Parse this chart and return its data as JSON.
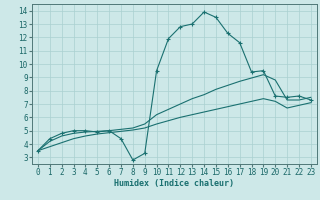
{
  "xlabel": "Humidex (Indice chaleur)",
  "bg_color": "#cde8e8",
  "grid_color": "#aad0d0",
  "line_color": "#1a7070",
  "xlim": [
    -0.5,
    23.5
  ],
  "ylim": [
    2.5,
    14.5
  ],
  "xticks": [
    0,
    1,
    2,
    3,
    4,
    5,
    6,
    7,
    8,
    9,
    10,
    11,
    12,
    13,
    14,
    15,
    16,
    17,
    18,
    19,
    20,
    21,
    22,
    23
  ],
  "yticks": [
    3,
    4,
    5,
    6,
    7,
    8,
    9,
    10,
    11,
    12,
    13,
    14
  ],
  "line1_x": [
    0,
    1,
    2,
    3,
    4,
    5,
    6,
    7,
    8,
    9,
    10,
    11,
    12,
    13,
    14,
    15,
    16,
    17,
    18,
    19,
    20,
    21,
    22,
    23
  ],
  "line1_y": [
    3.5,
    4.4,
    4.8,
    5.0,
    5.0,
    4.9,
    5.0,
    4.4,
    2.8,
    3.3,
    9.5,
    11.9,
    12.8,
    13.0,
    13.9,
    13.5,
    12.3,
    11.6,
    9.4,
    9.5,
    7.6,
    7.5,
    7.6,
    7.3
  ],
  "line2_x": [
    0,
    1,
    2,
    3,
    4,
    5,
    6,
    7,
    8,
    9,
    10,
    11,
    12,
    13,
    14,
    15,
    16,
    17,
    18,
    19,
    20,
    21,
    22,
    23
  ],
  "line2_y": [
    3.5,
    4.2,
    4.6,
    4.8,
    4.9,
    4.95,
    5.0,
    5.1,
    5.2,
    5.5,
    6.2,
    6.6,
    7.0,
    7.4,
    7.7,
    8.1,
    8.4,
    8.7,
    8.95,
    9.2,
    8.8,
    7.3,
    7.3,
    7.5
  ],
  "line3_x": [
    0,
    1,
    2,
    3,
    4,
    5,
    6,
    7,
    8,
    9,
    10,
    11,
    12,
    13,
    14,
    15,
    16,
    17,
    18,
    19,
    20,
    21,
    22,
    23
  ],
  "line3_y": [
    3.5,
    3.8,
    4.1,
    4.4,
    4.6,
    4.75,
    4.85,
    4.95,
    5.05,
    5.2,
    5.5,
    5.75,
    6.0,
    6.2,
    6.4,
    6.6,
    6.8,
    7.0,
    7.2,
    7.4,
    7.2,
    6.7,
    6.9,
    7.1
  ]
}
